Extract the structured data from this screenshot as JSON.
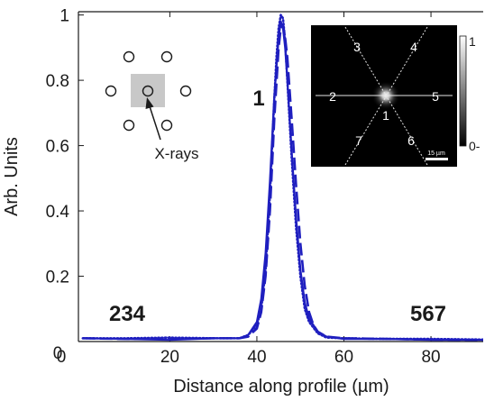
{
  "chart_data": {
    "type": "line",
    "xlabel": "Distance along profile (µm)",
    "ylabel": "Arb. Units",
    "xlim": [
      -1,
      92
    ],
    "ylim": [
      0,
      1.01
    ],
    "x_ticks": [
      20,
      40,
      60,
      80
    ],
    "y_ticks": [
      0.2,
      0.4,
      0.6,
      0.8,
      1
    ],
    "x_origin_label": "0",
    "y_origin_label": "0",
    "series": [
      {
        "line_style": "solid",
        "color": "#1f1fbf",
        "x": [
          0,
          10,
          20,
          30,
          36,
          38,
          40,
          41,
          42,
          43,
          44,
          45,
          45.5,
          46,
          46.5,
          47,
          48,
          49,
          50,
          51,
          52,
          54,
          56,
          60,
          70,
          80,
          92
        ],
        "y": [
          0.01,
          0.008,
          0.005,
          0.01,
          0.01,
          0.02,
          0.06,
          0.13,
          0.27,
          0.49,
          0.75,
          0.93,
          0.98,
          0.96,
          0.9,
          0.8,
          0.58,
          0.38,
          0.22,
          0.12,
          0.07,
          0.03,
          0.015,
          0.008,
          0.008,
          0.005,
          0.005
        ]
      },
      {
        "line_style": "dashed",
        "color": "#1f1fbf",
        "x": [
          0,
          10,
          20,
          30,
          36,
          38,
          40,
          41,
          42,
          43,
          44,
          45,
          45.5,
          46,
          46.5,
          47,
          48,
          49,
          50,
          51,
          52,
          53,
          54,
          56,
          60,
          70,
          80,
          92
        ],
        "y": [
          0.01,
          0.008,
          0.008,
          0.01,
          0.01,
          0.015,
          0.04,
          0.09,
          0.2,
          0.4,
          0.68,
          0.9,
          0.96,
          0.97,
          0.93,
          0.87,
          0.68,
          0.48,
          0.3,
          0.17,
          0.09,
          0.05,
          0.03,
          0.015,
          0.01,
          0.008,
          0.006,
          0.005
        ]
      },
      {
        "line_style": "dotted",
        "color": "#1f1fbf",
        "x": [
          0,
          10,
          20,
          30,
          36,
          38,
          40,
          41,
          42,
          43,
          44,
          44.5,
          45,
          45.5,
          46,
          46.5,
          47,
          48,
          49,
          50,
          51,
          52,
          54,
          56,
          60,
          70,
          80,
          92
        ],
        "y": [
          0.01,
          0.01,
          0.012,
          0.01,
          0.01,
          0.02,
          0.05,
          0.1,
          0.22,
          0.45,
          0.74,
          0.87,
          0.96,
          1.0,
          0.99,
          0.92,
          0.8,
          0.56,
          0.35,
          0.2,
          0.1,
          0.06,
          0.025,
          0.012,
          0.01,
          0.008,
          0.008,
          0.006
        ]
      }
    ],
    "annotations": {
      "peak_label": "1",
      "left_label": "234",
      "right_label": "567",
      "xray_label": "X-rays"
    },
    "inset": {
      "line_labels": [
        "1",
        "2",
        "3",
        "4",
        "5",
        "6",
        "7"
      ],
      "scale_bar_label": "15 µm",
      "colorbar_labels": [
        "1",
        "0-"
      ]
    }
  }
}
